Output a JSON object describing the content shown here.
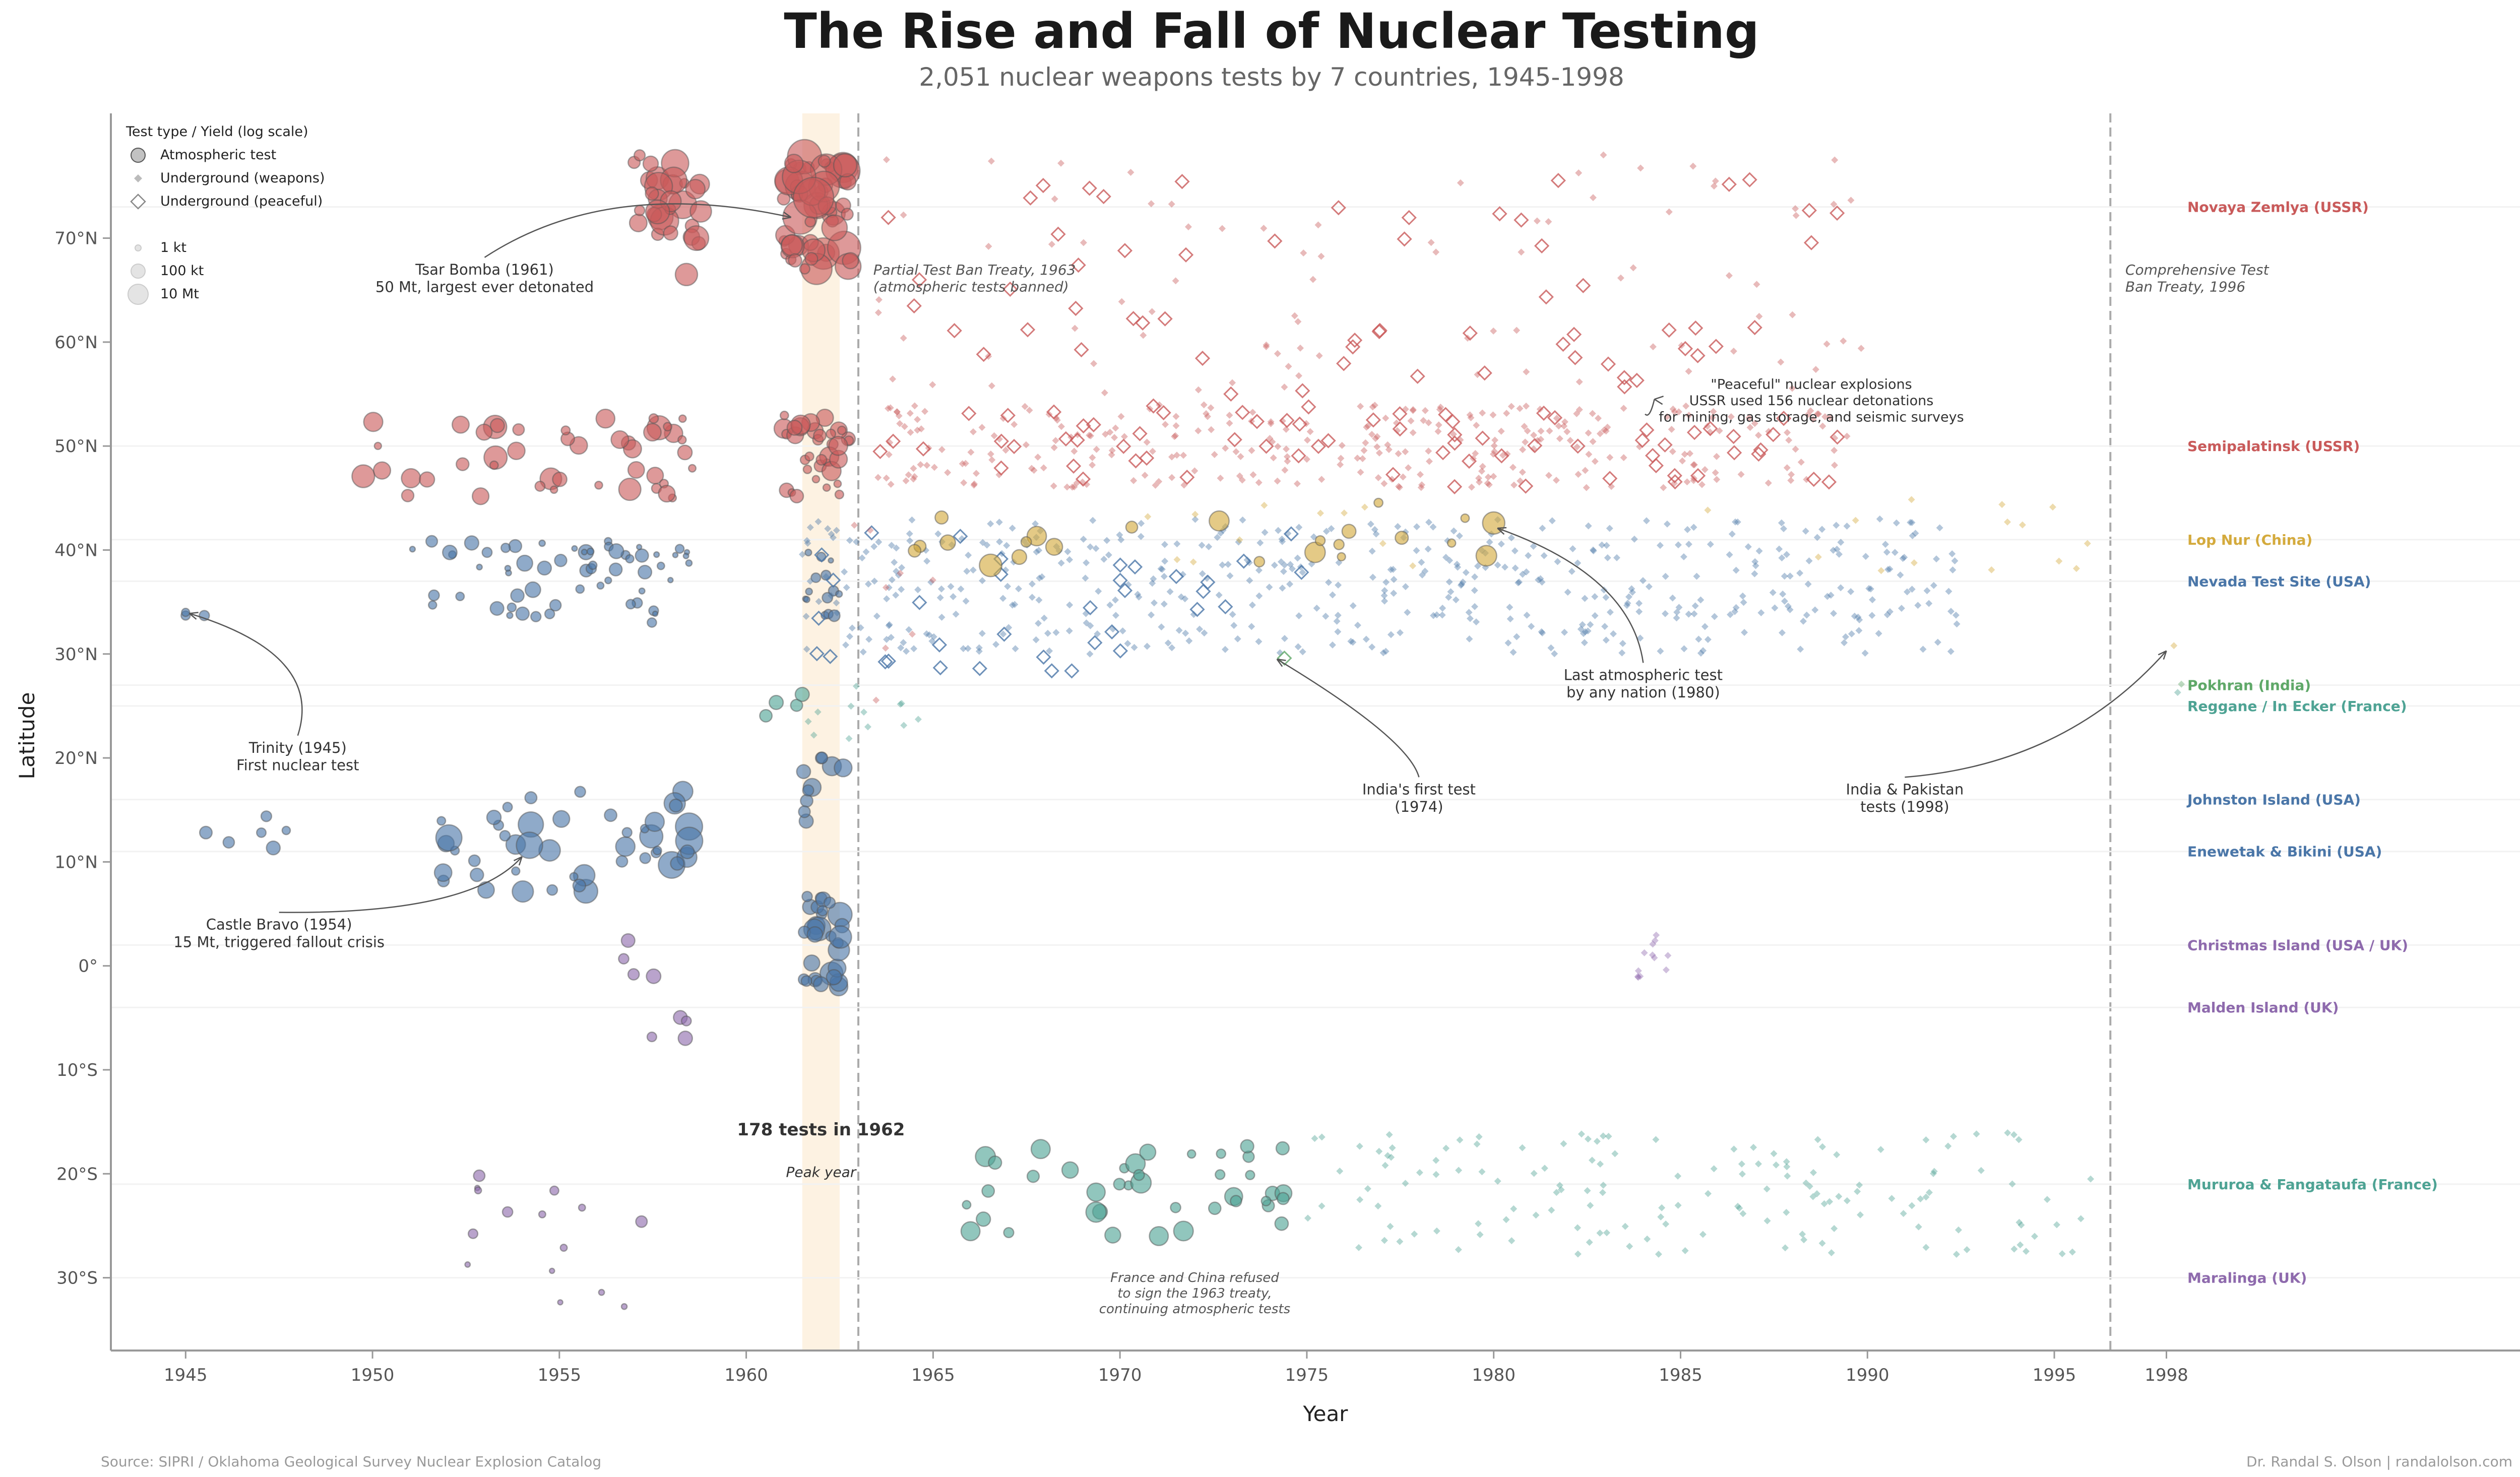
{
  "chart_data": {
    "type": "scatter",
    "title": "The Rise and Fall of Nuclear Testing",
    "subtitle": "2,051 nuclear weapons tests by 7 countries, 1945-1998",
    "xlabel": "Year",
    "ylabel": "Latitude",
    "xlim": [
      1943,
      2008
    ],
    "ylim": [
      -37,
      82
    ],
    "x_ticks": [
      1945,
      1950,
      1955,
      1960,
      1965,
      1970,
      1975,
      1980,
      1985,
      1990,
      1995,
      1998
    ],
    "y_ticks": [
      {
        "v": 70,
        "label": "70°N"
      },
      {
        "v": 60,
        "label": "60°N"
      },
      {
        "v": 50,
        "label": "50°N"
      },
      {
        "v": 40,
        "label": "40°N"
      },
      {
        "v": 30,
        "label": "30°N"
      },
      {
        "v": 20,
        "label": "20°N"
      },
      {
        "v": 10,
        "label": "10°N"
      },
      {
        "v": 0,
        "label": "0°"
      },
      {
        "v": -10,
        "label": "10°S"
      },
      {
        "v": -20,
        "label": "20°S"
      },
      {
        "v": -30,
        "label": "30°S"
      }
    ],
    "grid": false,
    "colors": {
      "USSR": "#c95a5a",
      "USA": "#4a76a8",
      "China": "#d4aa3c",
      "India": "#5fa868",
      "France": "#4ea394",
      "UK": "#8e6aad"
    },
    "legend": {
      "title": "Test type / Yield (log scale)",
      "types": [
        "Atmospheric test",
        "Underground (weapons)",
        "Underground (peaceful)"
      ],
      "sizes": [
        "1 kt",
        "100 kt",
        "10 Mt"
      ]
    },
    "sites": [
      {
        "name": "Novaya Zemlya (USSR)",
        "lat": 73,
        "country": "USSR"
      },
      {
        "name": "Semipalatinsk (USSR)",
        "lat": 50,
        "country": "USSR"
      },
      {
        "name": "Lop Nur (China)",
        "lat": 41,
        "country": "China"
      },
      {
        "name": "Nevada Test Site (USA)",
        "lat": 37,
        "country": "USA"
      },
      {
        "name": "Pokhran (India)",
        "lat": 27,
        "country": "India"
      },
      {
        "name": "Reggane / In Ecker (France)",
        "lat": 25,
        "country": "France"
      },
      {
        "name": "Johnston Island (USA)",
        "lat": 16,
        "country": "USA"
      },
      {
        "name": "Enewetak & Bikini (USA)",
        "lat": 11,
        "country": "USA"
      },
      {
        "name": "Christmas Island (USA / UK)",
        "lat": 2,
        "country": "UK"
      },
      {
        "name": "Malden Island (UK)",
        "lat": -4,
        "country": "UK"
      },
      {
        "name": "Mururoa & Fangataufa (France)",
        "lat": -21,
        "country": "France"
      },
      {
        "name": "Maralinga (UK)",
        "lat": -30,
        "country": "UK"
      }
    ],
    "clusters": [
      {
        "country": "USSR",
        "type": "atm",
        "x0": 1957.0,
        "x1": 1958.9,
        "y0": 69,
        "y1": 78,
        "n": 30,
        "s0": 9,
        "s1": 30
      },
      {
        "country": "USSR",
        "type": "atm",
        "x0": 1961.0,
        "x1": 1962.8,
        "y0": 67,
        "y1": 78,
        "n": 55,
        "s0": 10,
        "s1": 34
      },
      {
        "country": "USSR",
        "type": "atm",
        "x0": 1949.0,
        "x1": 1958.8,
        "y0": 45,
        "y1": 53,
        "n": 45,
        "s0": 7,
        "s1": 24
      },
      {
        "country": "USSR",
        "type": "atm",
        "x0": 1961.0,
        "x1": 1962.8,
        "y0": 45,
        "y1": 53,
        "n": 35,
        "s0": 7,
        "s1": 22
      },
      {
        "country": "USSR",
        "type": "ugw",
        "x0": 1963.5,
        "x1": 1989.5,
        "y0": 46,
        "y1": 54,
        "n": 320
      },
      {
        "country": "USSR",
        "type": "ugp",
        "x0": 1963.5,
        "x1": 1989.5,
        "y0": 46,
        "y1": 54,
        "n": 70
      },
      {
        "country": "USSR",
        "type": "ugw",
        "x0": 1963.5,
        "x1": 1990.0,
        "y0": 55,
        "y1": 78,
        "n": 85
      },
      {
        "country": "USSR",
        "type": "ugp",
        "x0": 1963.5,
        "x1": 1989.5,
        "y0": 55,
        "y1": 76,
        "n": 60
      },
      {
        "country": "USA",
        "type": "atm",
        "x0": 1951.0,
        "x1": 1958.5,
        "y0": 33,
        "y1": 41,
        "n": 60,
        "s0": 5,
        "s1": 16
      },
      {
        "country": "USA",
        "type": "atm",
        "x0": 1961.5,
        "x1": 1962.6,
        "y0": 33,
        "y1": 40,
        "n": 14,
        "s0": 5,
        "s1": 12
      },
      {
        "country": "USA",
        "type": "ugw",
        "x0": 1961.5,
        "x1": 1992.5,
        "y0": 30,
        "y1": 43,
        "n": 520
      },
      {
        "country": "USA",
        "type": "ugp",
        "x0": 1961.5,
        "x1": 1975.0,
        "y0": 28,
        "y1": 42,
        "n": 35
      },
      {
        "country": "USA",
        "type": "atm",
        "x0": 1951.0,
        "x1": 1958.8,
        "y0": 7,
        "y1": 17,
        "n": 45,
        "s0": 8,
        "s1": 28
      },
      {
        "country": "USA",
        "type": "atm",
        "x0": 1961.5,
        "x1": 1962.6,
        "y0": 13,
        "y1": 21,
        "n": 10,
        "s0": 10,
        "s1": 22
      },
      {
        "country": "USA",
        "type": "atm",
        "x0": 1961.5,
        "x1": 1962.6,
        "y0": -2,
        "y1": 7,
        "n": 30,
        "s0": 10,
        "s1": 26
      },
      {
        "country": "USA",
        "type": "atm",
        "x0": 1945.5,
        "x1": 1948.5,
        "y0": 10,
        "y1": 15,
        "n": 6,
        "s0": 8,
        "s1": 14
      },
      {
        "country": "China",
        "type": "atm",
        "x0": 1964.5,
        "x1": 1980.2,
        "y0": 38,
        "y1": 45,
        "n": 22,
        "s0": 8,
        "s1": 24
      },
      {
        "country": "China",
        "type": "ugw",
        "x0": 1969.0,
        "x1": 1996.5,
        "y0": 38,
        "y1": 45,
        "n": 25
      },
      {
        "country": "France",
        "type": "atm",
        "x0": 1960.0,
        "x1": 1961.5,
        "y0": 24,
        "y1": 28,
        "n": 4,
        "s0": 8,
        "s1": 14
      },
      {
        "country": "France",
        "type": "ugw",
        "x0": 1961.5,
        "x1": 1966.0,
        "y0": 21,
        "y1": 27,
        "n": 12
      },
      {
        "country": "France",
        "type": "atm",
        "x0": 1965.8,
        "x1": 1974.5,
        "y0": -26,
        "y1": -17,
        "n": 40,
        "s0": 8,
        "s1": 22
      },
      {
        "country": "France",
        "type": "ugw",
        "x0": 1975.0,
        "x1": 1996.0,
        "y0": -28,
        "y1": -16,
        "n": 150
      },
      {
        "country": "UK",
        "type": "atm",
        "x0": 1952.0,
        "x1": 1957.2,
        "y0": -33,
        "y1": -20,
        "n": 15,
        "s0": 5,
        "s1": 12
      },
      {
        "country": "UK",
        "type": "atm",
        "x0": 1956.5,
        "x1": 1958.5,
        "y0": -7,
        "y1": 3,
        "n": 8,
        "s0": 8,
        "s1": 16
      },
      {
        "country": "UK",
        "type": "ugw",
        "x0": 1983.6,
        "x1": 1984.7,
        "y0": -2,
        "y1": 3,
        "n": 12
      },
      {
        "country": "USSR",
        "type": "ugw",
        "x0": 1962.5,
        "x1": 1965.0,
        "y0": 20,
        "y1": 45,
        "n": 8
      }
    ],
    "points": [
      {
        "x": 1945.5,
        "y": 33.7,
        "country": "USA",
        "type": "atm",
        "s": 10
      },
      {
        "x": 1945.0,
        "y": 33.7,
        "country": "USA",
        "type": "atm",
        "s": 9
      },
      {
        "x": 1945.0,
        "y": 34.0,
        "country": "USA",
        "type": "atm",
        "s": 8
      },
      {
        "x": 1958.4,
        "y": 66.5,
        "country": "USSR",
        "type": "atm",
        "s": 22
      },
      {
        "x": 1961.8,
        "y": 73.9,
        "country": "USSR",
        "type": "atm",
        "s": 40
      },
      {
        "x": 1954.2,
        "y": 11.6,
        "country": "USA",
        "type": "atm",
        "s": 26
      },
      {
        "x": 1974.4,
        "y": 29.6,
        "country": "India",
        "type": "ugp",
        "s": 9
      },
      {
        "x": 1998.4,
        "y": 27.1,
        "country": "India",
        "type": "ugw",
        "s": 7
      },
      {
        "x": 1998.3,
        "y": 26.3,
        "country": "France",
        "type": "ugw",
        "s": 7
      },
      {
        "x": 1998.2,
        "y": 30.8,
        "country": "China",
        "type": "ugw",
        "s": 7
      },
      {
        "x": 1980.0,
        "y": 42.6,
        "country": "China",
        "type": "atm",
        "s": 22
      }
    ],
    "peak_band": {
      "x0": 1961.5,
      "x1": 1962.5
    },
    "treaty_lines": [
      1963.0,
      1996.5
    ],
    "annotations": {
      "tsar": {
        "text": [
          "Tsar Bomba (1961)",
          "50 Mt, largest ever detonated"
        ],
        "x": 1953,
        "y": 66.5,
        "ax": 1961.2,
        "ay": 72
      },
      "trinity": {
        "text": [
          "Trinity (1945)",
          "First nuclear test"
        ],
        "x": 1948.0,
        "y": 20.5,
        "ax": 1945.1,
        "ay": 33.9
      },
      "bravo": {
        "text": [
          "Castle Bravo (1954)",
          "15 Mt, triggered fallout crisis"
        ],
        "x": 1947.5,
        "y": 3.5,
        "ax": 1954.0,
        "ay": 10.5
      },
      "india": {
        "text": [
          "India's first test",
          "(1974)"
        ],
        "x": 1978.0,
        "y": 16.5,
        "ax": 1974.2,
        "ay": 29.5
      },
      "last_atm": {
        "text": [
          "Last atmospheric test",
          "by any nation (1980)"
        ],
        "x": 1984.0,
        "y": 27.5,
        "ax": 1980.1,
        "ay": 42.1
      },
      "peaceful": {
        "text": [
          "\"Peaceful\" nuclear explosions",
          "USSR used 156 nuclear detonations",
          "for mining, gas storage, and seismic surveys"
        ],
        "x": 1988.5,
        "y": 55.5,
        "ax": 1984.3,
        "ay": 54.5
      },
      "indpak": {
        "text": [
          "India & Pakistan",
          "tests (1998)"
        ],
        "x": 1991.0,
        "y": 16.5,
        "ax": 1998.0,
        "ay": 30.3
      },
      "peak_title": "178 tests in 1962",
      "peak_sub": "Peak year",
      "ptbt": [
        "Partial Test Ban Treaty, 1963",
        "(atmospheric tests banned)"
      ],
      "ctbt": [
        "Comprehensive Test",
        "Ban Treaty, 1996"
      ],
      "france_china": [
        "France and China refused",
        "to sign the 1963 treaty,",
        "continuing atmospheric tests"
      ]
    },
    "source": "Source: SIPRI / Oklahoma Geological Survey Nuclear Explosion Catalog",
    "credit": "Dr. Randal S. Olson  |  randalolson.com"
  }
}
